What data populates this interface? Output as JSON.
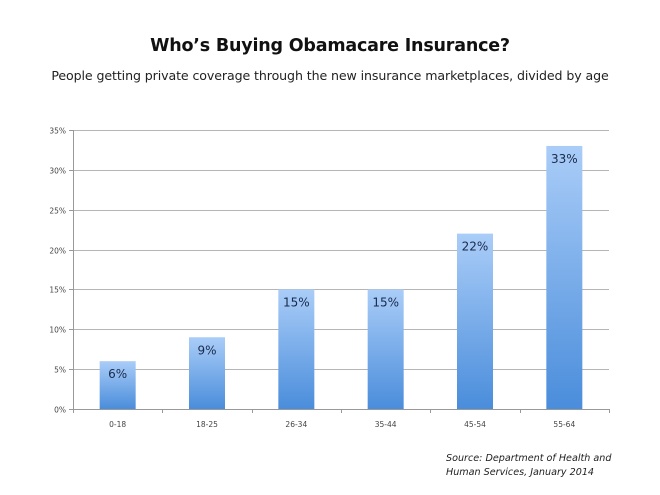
{
  "chart_data": {
    "type": "bar",
    "title": "Who’s Buying Obamacare Insurance?",
    "subtitle": "People getting private coverage through the new insurance marketplaces, divided by age",
    "xlabel": "",
    "ylabel": "",
    "categories": [
      "0-18",
      "18-25",
      "26-34",
      "35-44",
      "45-54",
      "55-64"
    ],
    "values": [
      6,
      9,
      15,
      15,
      22,
      33
    ],
    "value_labels": [
      "6%",
      "9%",
      "15%",
      "15%",
      "22%",
      "33%"
    ],
    "ylim": [
      0,
      35
    ],
    "yticks": [
      0,
      5,
      10,
      15,
      20,
      25,
      30,
      35
    ],
    "ytick_labels": [
      "0%",
      "5%",
      "10%",
      "15%",
      "20%",
      "25%",
      "30%",
      "35%"
    ],
    "grid": true,
    "legend": "none",
    "annotation": "Source: Department of Health and Human Services, January 2014",
    "colors": {
      "bar_top": "#aacdf8",
      "bar_bottom": "#4a8ddb",
      "label": "#1a2a4a",
      "grid": "#b5b5b5"
    }
  },
  "source_lines": [
    "Source: Department of Health and",
    "Human Services, January 2014"
  ]
}
